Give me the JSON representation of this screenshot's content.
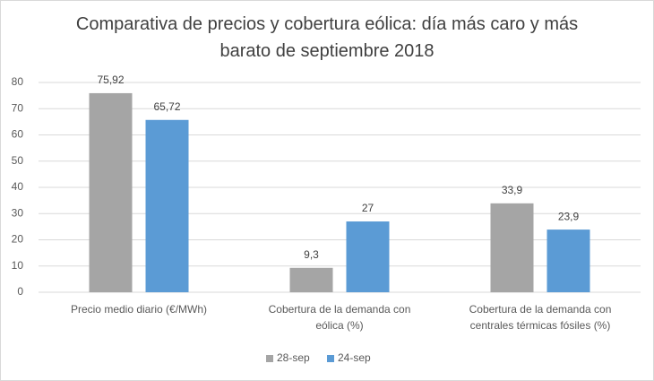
{
  "chart_data": {
    "type": "bar",
    "title": "Comparativa de precios y cobertura eólica: día más caro y más barato de septiembre 2018",
    "categories": [
      "Precio medio diario (€/MWh)",
      "Cobertura de la demanda con eólica (%)",
      "Cobertura de la demanda con centrales térmicas fósiles (%)"
    ],
    "series": [
      {
        "name": "28-sep",
        "color": "#a5a5a5",
        "values": [
          75.92,
          9.3,
          33.9
        ],
        "value_labels": [
          "75,92",
          "9,3",
          "33,9"
        ]
      },
      {
        "name": "24-sep",
        "color": "#5b9bd5",
        "values": [
          65.72,
          27,
          23.9
        ],
        "value_labels": [
          "65,72",
          "27",
          "23,9"
        ]
      }
    ],
    "ylim": [
      0,
      80
    ],
    "yticks": [
      0,
      10,
      20,
      30,
      40,
      50,
      60,
      70,
      80
    ],
    "grid": true,
    "legend": "bottom"
  }
}
